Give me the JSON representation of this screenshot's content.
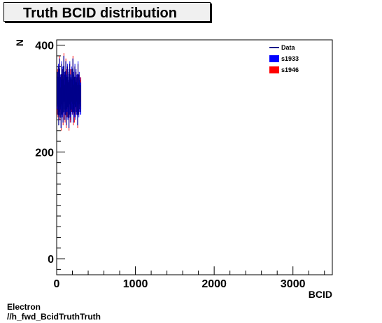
{
  "chart_data": {
    "type": "histogram",
    "title": "Truth BCID distribution",
    "xlabel": "BCID",
    "ylabel": "N",
    "xlim": [
      0,
      3500
    ],
    "ylim": [
      -30,
      410
    ],
    "x_ticks": [
      0,
      1000,
      2000,
      3000
    ],
    "y_ticks": [
      0,
      200,
      400
    ],
    "legend_position": "top-right",
    "legend": [
      {
        "label": "Data",
        "style": "line",
        "color": "#00008b"
      },
      {
        "label": "s1933",
        "style": "box",
        "color": "#0000ff"
      },
      {
        "label": "s1946",
        "style": "box",
        "color": "#ff0000"
      }
    ],
    "series": [
      {
        "name": "Data",
        "color": "#00008b",
        "x": [
          5,
          10,
          15,
          20,
          25,
          30,
          35,
          40,
          45,
          50,
          55,
          60,
          65,
          70,
          75,
          80,
          85,
          90,
          95,
          100,
          105,
          110,
          115,
          120,
          125,
          130,
          135,
          140,
          145,
          150,
          155,
          160,
          165,
          170,
          175,
          180,
          185,
          190,
          195,
          200,
          205,
          210,
          215,
          220,
          225,
          230,
          235,
          240,
          245,
          250,
          255,
          260,
          265,
          270,
          275,
          280,
          285,
          290,
          295,
          300,
          305
        ],
        "values": [
          305,
          330,
          290,
          340,
          270,
          310,
          355,
          285,
          320,
          300,
          265,
          345,
          310,
          290,
          335,
          275,
          315,
          360,
          295,
          325,
          280,
          305,
          350,
          270,
          320,
          300,
          340,
          285,
          310,
          330,
          265,
          305,
          345,
          290,
          320,
          280,
          315,
          335,
          295,
          310,
          355,
          275,
          325,
          300,
          290,
          340,
          310,
          285,
          330,
          295,
          320,
          305,
          270,
          345,
          310,
          290,
          325,
          300,
          315,
          295,
          305
        ]
      },
      {
        "name": "s1933",
        "color": "#0000ff",
        "x": [
          5,
          10,
          15,
          20,
          25,
          30,
          35,
          40,
          45,
          50,
          55,
          60,
          65,
          70,
          75,
          80,
          85,
          90,
          95,
          100,
          105,
          110,
          115,
          120,
          125,
          130,
          135,
          140,
          145,
          150,
          155,
          160,
          165,
          170,
          175,
          180,
          185,
          190,
          195,
          200,
          205,
          210,
          215,
          220,
          225,
          230,
          235,
          240,
          245,
          250,
          255,
          260,
          265,
          270,
          275,
          280,
          285,
          290,
          295,
          300,
          305
        ],
        "values": [
          310,
          320,
          300,
          335,
          280,
          305,
          345,
          295,
          315,
          310,
          275,
          340,
          300,
          295,
          330,
          285,
          310,
          350,
          300,
          320,
          290,
          300,
          340,
          280,
          315,
          305,
          335,
          290,
          305,
          325,
          275,
          300,
          340,
          295,
          315,
          285,
          310,
          330,
          300,
          305,
          345,
          285,
          320,
          305,
          295,
          335,
          305,
          290,
          325,
          300,
          315,
          300,
          280,
          340,
          305,
          295,
          320,
          305,
          310,
          300,
          300
        ],
        "errors": 30
      },
      {
        "name": "s1946",
        "color": "#ff0000",
        "x": [
          5,
          10,
          15,
          20,
          25,
          30,
          35,
          40,
          45,
          50,
          55,
          60,
          65,
          70,
          75,
          80,
          85,
          90,
          95,
          100,
          105,
          110,
          115,
          120,
          125,
          130,
          135,
          140,
          145,
          150,
          155,
          160,
          165,
          170,
          175,
          180,
          185,
          190,
          195,
          200,
          205,
          210,
          215,
          220,
          225,
          230,
          235,
          240,
          245,
          250,
          255,
          260,
          265,
          270,
          275,
          280,
          285,
          290,
          295,
          300,
          305
        ],
        "values": [
          300,
          325,
          295,
          330,
          285,
          315,
          350,
          290,
          310,
          305,
          270,
          335,
          315,
          300,
          325,
          280,
          320,
          355,
          290,
          315,
          285,
          310,
          345,
          275,
          325,
          295,
          330,
          295,
          300,
          320,
          270,
          310,
          335,
          285,
          325,
          290,
          305,
          325,
          305,
          300,
          350,
          280,
          315,
          310,
          285,
          330,
          300,
          295,
          320,
          305,
          310,
          310,
          275,
          335,
          315,
          300,
          315,
          310,
          305,
          305,
          310
        ],
        "errors": 30
      }
    ]
  },
  "footer": {
    "line1": "Electron",
    "line2": "//h_fwd_BcidTruthTruth"
  }
}
